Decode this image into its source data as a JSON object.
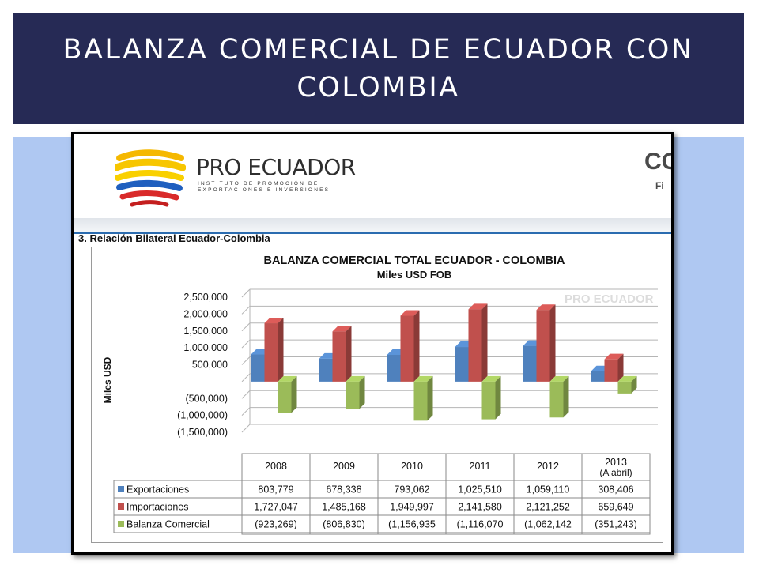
{
  "slide": {
    "title": "BALANZA COMERCIAL DE ECUADOR CON\nCOLOMBIA"
  },
  "logo": {
    "name": "PRO ECUADOR",
    "subtitle": "INSTITUTO DE PROMOCIÓN DE\nEXPORTACIONES E INVERSIONES"
  },
  "corner": {
    "text": "CO",
    "sub": "Fi"
  },
  "section": {
    "title": "3. Relación Bilateral Ecuador-Colombia"
  },
  "watermark": {
    "text": "PRO ECUADOR"
  },
  "colors": {
    "title_bar": "#262a55",
    "content_bg": "#afc8f2",
    "exportaciones": "#4f81bd",
    "importaciones": "#c0504d",
    "balanza": "#9bbb59"
  },
  "chart_data": {
    "type": "bar",
    "title": "BALANZA COMERCIAL TOTAL ECUADOR - COLOMBIA",
    "subtitle": "Miles USD FOB",
    "ylabel": "Miles USD",
    "ylim": [
      -1500000,
      2500000
    ],
    "y_ticks": [
      2500000,
      2000000,
      1500000,
      1000000,
      500000,
      0,
      -500000,
      -1000000,
      -1500000
    ],
    "y_tick_labels": [
      "2,500,000",
      "2,000,000",
      "1,500,000",
      "1,000,000",
      "500,000",
      "-",
      "(500,000)",
      "(1,000,000)",
      "(1,500,000)"
    ],
    "categories": [
      "2008",
      "2009",
      "2010",
      "2011",
      "2012",
      "2013"
    ],
    "category_sub": [
      "",
      "",
      "",
      "",
      "",
      "(A abril)"
    ],
    "grid": true,
    "legend": "table-below",
    "series": [
      {
        "name": "Exportaciones",
        "color": "#4f81bd",
        "values": [
          803779,
          678338,
          793062,
          1025510,
          1059110,
          308406
        ],
        "labels": [
          "803,779",
          "678,338",
          "793,062",
          "1,025,510",
          "1,059,110",
          "308,406"
        ]
      },
      {
        "name": "Importaciones",
        "color": "#c0504d",
        "values": [
          1727047,
          1485168,
          1949997,
          2141580,
          2121252,
          659649
        ],
        "labels": [
          "1,727,047",
          "1,485,168",
          "1,949,997",
          "2,141,580",
          "2,121,252",
          "659,649"
        ]
      },
      {
        "name": "Balanza Comercial",
        "color": "#9bbb59",
        "values": [
          -923269,
          -806830,
          -1156935,
          -1116070,
          -1062142,
          -351243
        ],
        "labels": [
          "(923,269)",
          "(806,830)",
          "(1,156,935",
          "(1,116,070",
          "(1,062,142",
          "(351,243)"
        ]
      }
    ]
  }
}
